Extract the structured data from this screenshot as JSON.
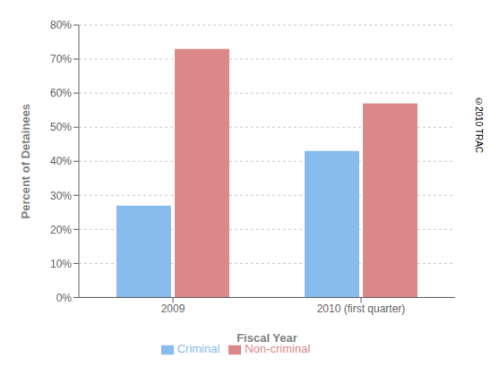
{
  "chart_data": {
    "type": "bar",
    "categories": [
      "2009",
      "2010 (first quarter)"
    ],
    "series": [
      {
        "name": "Criminal",
        "color": "#88BBEE",
        "values": [
          0.27,
          0.43
        ]
      },
      {
        "name": "Non-criminal",
        "color": "#DD8888",
        "values": [
          0.73,
          0.57
        ]
      }
    ],
    "xlabel": "Fiscal Year",
    "ylabel": "Percent of Detainees",
    "ylim": [
      0,
      0.8
    ],
    "yticks": [
      {
        "value": 0,
        "label": "0%"
      },
      {
        "value": 0.1,
        "label": "10%"
      },
      {
        "value": 0.2,
        "label": "20%"
      },
      {
        "value": 0.3,
        "label": "30%"
      },
      {
        "value": 0.4,
        "label": "40%"
      },
      {
        "value": 0.5,
        "label": "50%"
      },
      {
        "value": 0.6,
        "label": "60%"
      },
      {
        "value": 0.7,
        "label": "70%"
      },
      {
        "value": 0.8,
        "label": "80%"
      }
    ],
    "grid": true,
    "legend": "bottom",
    "annotations": [
      "©2010 TRAC"
    ]
  }
}
